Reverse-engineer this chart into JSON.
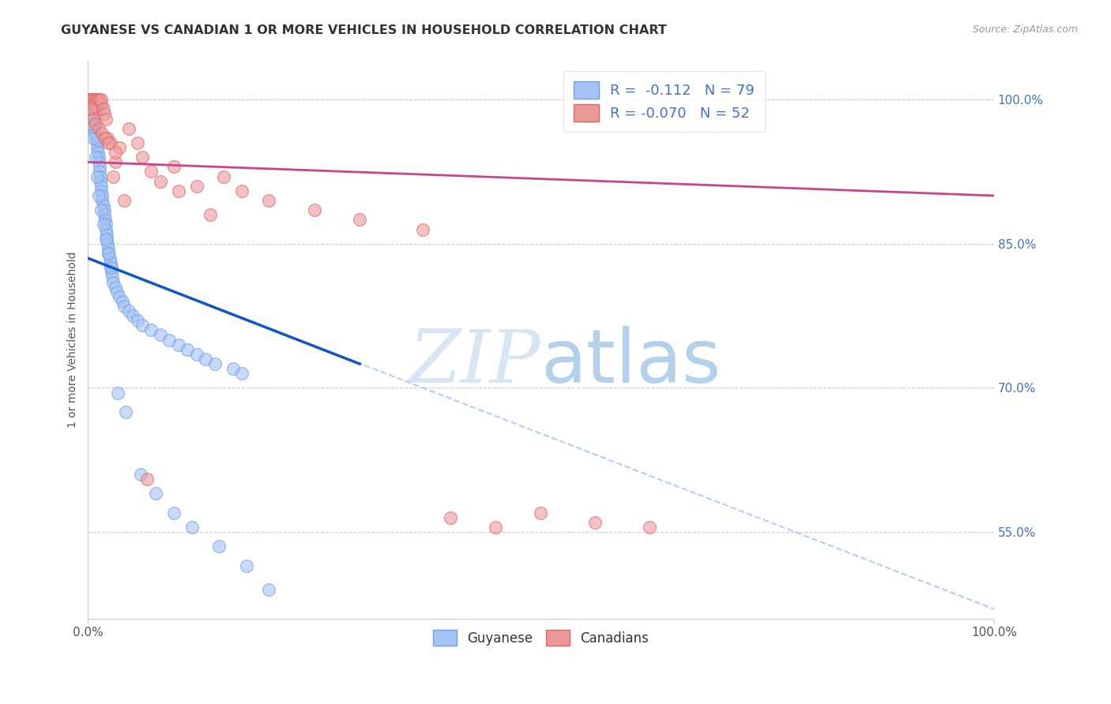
{
  "title": "GUYANESE VS CANADIAN 1 OR MORE VEHICLES IN HOUSEHOLD CORRELATION CHART",
  "source": "Source: ZipAtlas.com",
  "ylabel": "1 or more Vehicles in Household",
  "xlim": [
    0.0,
    100.0
  ],
  "ylim": [
    46.0,
    104.0
  ],
  "yticks": [
    55.0,
    70.0,
    85.0,
    100.0
  ],
  "ytick_labels": [
    "55.0%",
    "70.0%",
    "85.0%",
    "100.0%"
  ],
  "xtick_labels": [
    "0.0%",
    "100.0%"
  ],
  "legend_r_blue": "-0.112",
  "legend_n_blue": "79",
  "legend_r_pink": "-0.070",
  "legend_n_pink": "52",
  "blue_color": "#a4c2f4",
  "blue_edge": "#6d9eeb",
  "pink_color": "#ea9999",
  "pink_edge": "#e06666",
  "trend_blue": "#1155cc",
  "trend_pink": "#cc4488",
  "trend_dash_color": "#a4c2f4",
  "watermark_color": "#cfe2f3",
  "blue_scatter_x": [
    0.3,
    0.3,
    0.5,
    0.5,
    0.6,
    0.7,
    0.7,
    0.8,
    0.8,
    0.9,
    1.0,
    1.0,
    1.1,
    1.1,
    1.2,
    1.2,
    1.3,
    1.3,
    1.4,
    1.4,
    1.5,
    1.5,
    1.6,
    1.6,
    1.7,
    1.8,
    1.8,
    1.9,
    2.0,
    2.0,
    2.1,
    2.1,
    2.2,
    2.3,
    2.3,
    2.4,
    2.5,
    2.5,
    2.6,
    2.7,
    2.8,
    3.0,
    3.2,
    3.5,
    3.8,
    4.0,
    4.5,
    5.0,
    5.5,
    6.0,
    7.0,
    8.0,
    9.0,
    10.0,
    11.0,
    12.0,
    13.0,
    14.0,
    16.0,
    17.0,
    0.4,
    0.6,
    0.9,
    1.0,
    1.2,
    1.5,
    1.7,
    2.0,
    2.3,
    2.6,
    3.3,
    4.2,
    5.8,
    7.5,
    9.5,
    11.5,
    14.5,
    17.5,
    20.0
  ],
  "blue_scatter_y": [
    100.0,
    99.0,
    99.5,
    98.5,
    98.0,
    97.5,
    97.0,
    99.0,
    96.5,
    96.0,
    95.5,
    95.0,
    95.8,
    94.5,
    94.0,
    93.5,
    93.0,
    92.5,
    92.0,
    91.5,
    91.0,
    90.5,
    90.0,
    89.5,
    89.0,
    88.5,
    88.0,
    87.5,
    87.0,
    86.5,
    86.0,
    85.5,
    85.0,
    84.5,
    84.0,
    83.5,
    83.0,
    82.5,
    82.0,
    81.5,
    81.0,
    80.5,
    80.0,
    79.5,
    79.0,
    78.5,
    78.0,
    77.5,
    77.0,
    76.5,
    76.0,
    75.5,
    75.0,
    74.5,
    74.0,
    73.5,
    73.0,
    72.5,
    72.0,
    71.5,
    97.5,
    96.0,
    94.0,
    92.0,
    90.0,
    88.5,
    87.0,
    85.5,
    84.0,
    82.5,
    69.5,
    67.5,
    61.0,
    59.0,
    57.0,
    55.5,
    53.5,
    51.5,
    49.0
  ],
  "pink_scatter_x": [
    0.2,
    0.4,
    0.5,
    0.5,
    0.6,
    0.7,
    0.8,
    0.9,
    1.0,
    1.1,
    1.2,
    1.3,
    1.5,
    1.5,
    1.7,
    1.8,
    2.0,
    2.2,
    2.5,
    2.8,
    3.0,
    3.5,
    4.5,
    5.5,
    6.0,
    7.0,
    8.0,
    10.0,
    12.0,
    15.0,
    17.0,
    20.0,
    25.0,
    30.0,
    37.0,
    40.0,
    45.0,
    50.0,
    56.0,
    62.0,
    0.3,
    0.6,
    0.9,
    1.2,
    1.6,
    1.9,
    2.3,
    3.0,
    4.0,
    6.5,
    9.5,
    13.5
  ],
  "pink_scatter_y": [
    100.0,
    100.0,
    100.0,
    99.5,
    100.0,
    99.5,
    99.0,
    100.0,
    100.0,
    99.0,
    100.0,
    100.0,
    99.5,
    100.0,
    99.0,
    98.5,
    98.0,
    96.0,
    95.5,
    92.0,
    93.5,
    95.0,
    97.0,
    95.5,
    94.0,
    92.5,
    91.5,
    90.5,
    91.0,
    92.0,
    90.5,
    89.5,
    88.5,
    87.5,
    86.5,
    56.5,
    55.5,
    57.0,
    56.0,
    55.5,
    99.0,
    98.0,
    97.5,
    97.0,
    96.5,
    96.0,
    95.5,
    94.5,
    89.5,
    60.5,
    93.0,
    88.0
  ],
  "blue_trend_x0": 0.0,
  "blue_trend_y0": 83.5,
  "blue_trend_x1": 30.0,
  "blue_trend_y1": 72.5,
  "blue_dash_x0": 0.0,
  "blue_dash_y0": 83.5,
  "blue_dash_x1": 100.0,
  "blue_dash_y1": 47.0,
  "pink_trend_x0": 0.0,
  "pink_trend_y0": 93.5,
  "pink_trend_x1": 100.0,
  "pink_trend_y1": 90.0
}
